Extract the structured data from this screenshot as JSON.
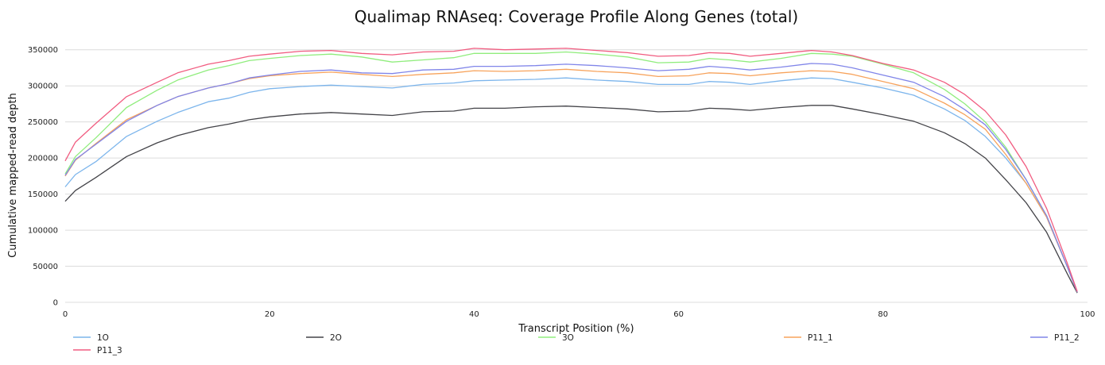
{
  "chart_data": {
    "type": "line",
    "title": "Qualimap RNAseq: Coverage Profile Along Genes (total)",
    "xlabel": "Transcript Position (%)",
    "ylabel": "Cumulative mapped-read depth",
    "xlim": [
      0,
      100
    ],
    "ylim": [
      0,
      375000
    ],
    "xticks": [
      0,
      20,
      40,
      60,
      80,
      100
    ],
    "yticks": [
      0,
      50000,
      100000,
      150000,
      200000,
      250000,
      300000,
      350000
    ],
    "grid": true,
    "legend_position": "bottom",
    "x": [
      0,
      1,
      3,
      6,
      9,
      11,
      14,
      16,
      18,
      20,
      23,
      26,
      29,
      32,
      35,
      38,
      40,
      43,
      46,
      49,
      52,
      55,
      58,
      61,
      63,
      65,
      67,
      70,
      73,
      75,
      77,
      80,
      83,
      86,
      88,
      90,
      92,
      94,
      96,
      98,
      99
    ],
    "series": [
      {
        "name": "1O",
        "color": "#7cb5ec",
        "values": [
          160000,
          177000,
          195000,
          230000,
          251000,
          263000,
          278000,
          283000,
          291000,
          296000,
          299000,
          301000,
          299000,
          297000,
          302000,
          304000,
          307000,
          308000,
          309000,
          311000,
          308000,
          306000,
          302000,
          302000,
          306000,
          305000,
          302000,
          307000,
          311000,
          310000,
          305000,
          297000,
          287000,
          268000,
          252000,
          230000,
          200000,
          165000,
          118000,
          50000,
          14000
        ]
      },
      {
        "name": "2O",
        "color": "#434348",
        "values": [
          140000,
          155000,
          173000,
          202000,
          221000,
          231000,
          242000,
          247000,
          253000,
          257000,
          261000,
          263000,
          261000,
          259000,
          264000,
          265000,
          269000,
          269000,
          271000,
          272000,
          270000,
          268000,
          264000,
          265000,
          269000,
          268000,
          266000,
          270000,
          273000,
          273000,
          268000,
          260000,
          251000,
          235000,
          220000,
          200000,
          170000,
          138000,
          97000,
          40000,
          13000
        ]
      },
      {
        "name": "3O",
        "color": "#90ed7d",
        "values": [
          178000,
          202000,
          228000,
          270000,
          294000,
          308000,
          322000,
          328000,
          335000,
          338000,
          342000,
          344000,
          340000,
          333000,
          336000,
          339000,
          345000,
          345000,
          345000,
          347000,
          344000,
          340000,
          332000,
          333000,
          338000,
          336000,
          333000,
          338000,
          345000,
          344000,
          341000,
          330000,
          318000,
          295000,
          275000,
          250000,
          215000,
          170000,
          120000,
          50000,
          14000
        ]
      },
      {
        "name": "P11_1",
        "color": "#f7a35c",
        "values": [
          175000,
          197000,
          220000,
          253000,
          273000,
          285000,
          297000,
          303000,
          310000,
          314000,
          317000,
          319000,
          316000,
          313000,
          316000,
          318000,
          321000,
          320000,
          321000,
          323000,
          320000,
          318000,
          313000,
          314000,
          318000,
          317000,
          314000,
          318000,
          321000,
          320000,
          316000,
          306000,
          296000,
          276000,
          260000,
          240000,
          205000,
          165000,
          118000,
          50000,
          14000
        ]
      },
      {
        "name": "P11_2",
        "color": "#8085e9",
        "values": [
          176000,
          198000,
          219000,
          251000,
          273000,
          285000,
          297000,
          303000,
          311000,
          315000,
          320000,
          322000,
          318000,
          317000,
          322000,
          323000,
          327000,
          327000,
          328000,
          330000,
          328000,
          325000,
          321000,
          323000,
          327000,
          325000,
          322000,
          326000,
          331000,
          330000,
          325000,
          315000,
          305000,
          285000,
          267000,
          246000,
          212000,
          170000,
          120000,
          50000,
          14000
        ]
      },
      {
        "name": "P11_3",
        "color": "#f15c80",
        "values": [
          196000,
          222000,
          248000,
          285000,
          305000,
          318000,
          330000,
          335000,
          341000,
          344000,
          348000,
          349000,
          345000,
          343000,
          347000,
          348000,
          352000,
          350000,
          351000,
          352000,
          349000,
          346000,
          341000,
          342000,
          346000,
          345000,
          341000,
          345000,
          349000,
          347000,
          342000,
          331000,
          322000,
          305000,
          288000,
          265000,
          232000,
          188000,
          130000,
          55000,
          15000
        ]
      }
    ]
  }
}
